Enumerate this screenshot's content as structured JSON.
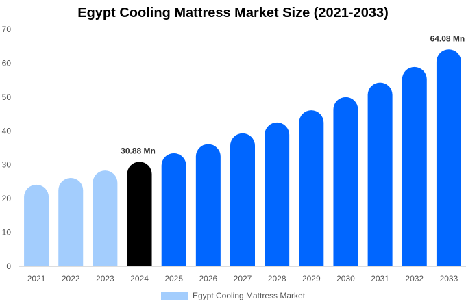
{
  "chart_data": {
    "type": "bar",
    "title": "Egypt Cooling Mattress Market Size (2021-2033)",
    "categories": [
      "2021",
      "2022",
      "2023",
      "2024",
      "2025",
      "2026",
      "2027",
      "2028",
      "2029",
      "2030",
      "2031",
      "2032",
      "2033"
    ],
    "series": [
      {
        "name": "Egypt Cooling Mattress Market",
        "values": [
          24.1,
          26.1,
          28.3,
          30.88,
          33.4,
          36.1,
          39.3,
          42.5,
          46.1,
          50.0,
          54.3,
          58.9,
          64.08
        ]
      }
    ],
    "data_labels": {
      "3": "30.88 Mn",
      "12": "64.08 Mn"
    },
    "ylim": [
      0,
      70
    ],
    "yticks": [
      0,
      10,
      20,
      30,
      40,
      50,
      60,
      70
    ],
    "grid": false,
    "legend": "bottom",
    "colors": {
      "historical": "#a3cdfd",
      "base_year": "#000000",
      "forecast": "#0066ff"
    }
  }
}
